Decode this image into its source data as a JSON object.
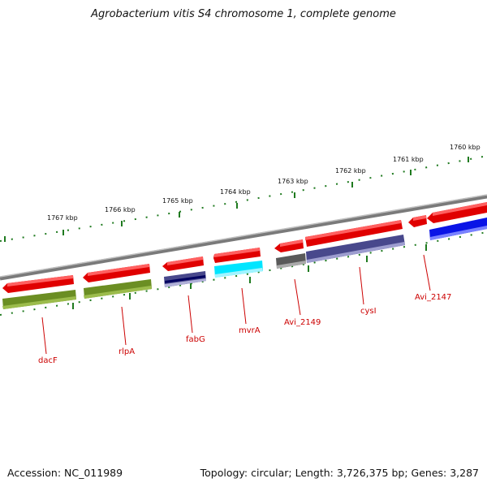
{
  "title": "Agrobacterium vitis S4 chromosome 1, complete genome",
  "footer": {
    "accession": "Accession: NC_011989",
    "summary": "Topology: circular; Length: 3,726,375 bp; Genes: 3,287"
  },
  "scale_labels": [
    "1767 kbp",
    "1766 kbp",
    "1765 kbp",
    "1764 kbp",
    "1763 kbp",
    "1762 kbp",
    "1761 kbp",
    "1760 kbp"
  ],
  "gene_labels": [
    "dacF",
    "rlpA",
    "fabG",
    "mvrA",
    "Avi_2149",
    "cysI",
    "Avi_2147"
  ],
  "colors": {
    "backbone": "#808080",
    "ticks": "#1f7a1f",
    "gene": "#ff1a1a",
    "cds_olive": "#6b8e23",
    "cds_slate": "#48488c",
    "cds_cyan": "#00e5ff",
    "cds_gray": "#5a5a5a",
    "cds_blue": "#0a14e6",
    "label": "#cc0000"
  }
}
